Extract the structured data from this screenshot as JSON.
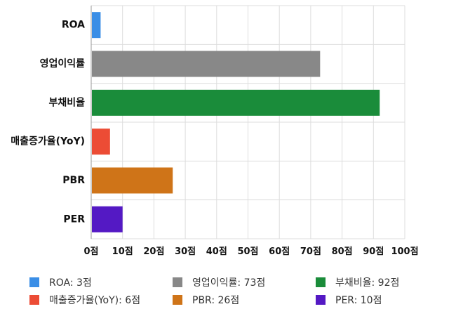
{
  "chart_data": {
    "type": "bar",
    "orientation": "horizontal",
    "categories": [
      "ROA",
      "영업이익률",
      "부채비율",
      "매출증가율(YoY)",
      "PBR",
      "PER"
    ],
    "values": [
      3,
      73,
      92,
      6,
      26,
      10
    ],
    "colors": [
      "#3a8ee6",
      "#888888",
      "#1a8c3a",
      "#ec4c35",
      "#cf7418",
      "#5419c4"
    ],
    "xlim": [
      0,
      100
    ],
    "x_ticks": [
      0,
      10,
      20,
      30,
      40,
      50,
      60,
      70,
      80,
      90,
      100
    ],
    "tick_suffix": "점",
    "grid": true,
    "legend_position": "bottom",
    "legend": [
      {
        "label": "ROA: 3점",
        "color": "#3a8ee6"
      },
      {
        "label": "영업이익률: 73점",
        "color": "#888888"
      },
      {
        "label": "부채비율: 92점",
        "color": "#1a8c3a"
      },
      {
        "label": "매출증가율(YoY): 6점",
        "color": "#ec4c35"
      },
      {
        "label": "PBR: 26점",
        "color": "#cf7418"
      },
      {
        "label": "PER: 10점",
        "color": "#5419c4"
      }
    ]
  }
}
